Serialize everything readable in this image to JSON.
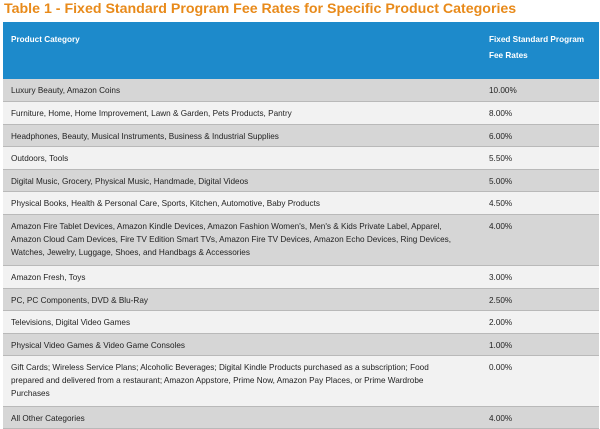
{
  "title": "Table 1 - Fixed Standard Program Fee Rates for Specific Product Categories",
  "colors": {
    "title": "#E88A1A",
    "header_bg": "#1D8ACB",
    "row_dark": "#d6d6d6",
    "row_light": "#f2f2f2"
  },
  "headers": {
    "category": "Product Category",
    "rate_line1": "Fixed Standard Program",
    "rate_line2": "Fee Rates"
  },
  "rows": [
    {
      "category": "Luxury Beauty, Amazon Coins",
      "rate": "10.00%"
    },
    {
      "category": "Furniture, Home, Home Improvement, Lawn & Garden, Pets Products, Pantry",
      "rate": "8.00%"
    },
    {
      "category": "Headphones, Beauty, Musical Instruments, Business & Industrial Supplies",
      "rate": "6.00%"
    },
    {
      "category": "Outdoors, Tools",
      "rate": "5.50%"
    },
    {
      "category": "Digital Music, Grocery, Physical Music, Handmade, Digital Videos",
      "rate": "5.00%"
    },
    {
      "category": "Physical Books, Health & Personal Care, Sports, Kitchen, Automotive, Baby Products",
      "rate": "4.50%"
    },
    {
      "category_lines": [
        "Amazon Fire Tablet Devices, Amazon Kindle Devices, Amazon Fashion Women's, Men's & Kids Private Label, Apparel,",
        "Amazon Cloud Cam Devices, Fire TV Edition Smart TVs, Amazon Fire TV Devices, Amazon Echo Devices, Ring Devices,",
        "Watches, Jewelry, Luggage, Shoes, and Handbags & Accessories"
      ],
      "rate": "4.00%"
    },
    {
      "category": "Amazon Fresh, Toys",
      "rate": "3.00%"
    },
    {
      "category": "PC, PC Components, DVD & Blu-Ray",
      "rate": "2.50%"
    },
    {
      "category": "Televisions, Digital Video Games",
      "rate": "2.00%"
    },
    {
      "category": "Physical Video Games & Video Game Consoles",
      "rate": "1.00%"
    },
    {
      "category_lines": [
        "Gift Cards; Wireless Service Plans; Alcoholic Beverages; Digital Kindle Products purchased as a subscription; Food",
        "prepared and delivered from a restaurant; Amazon Appstore, Prime Now, Amazon Pay Places, or Prime Wardrobe",
        "Purchases"
      ],
      "rate": "0.00%"
    },
    {
      "category": "All Other Categories",
      "rate": "4.00%"
    }
  ]
}
